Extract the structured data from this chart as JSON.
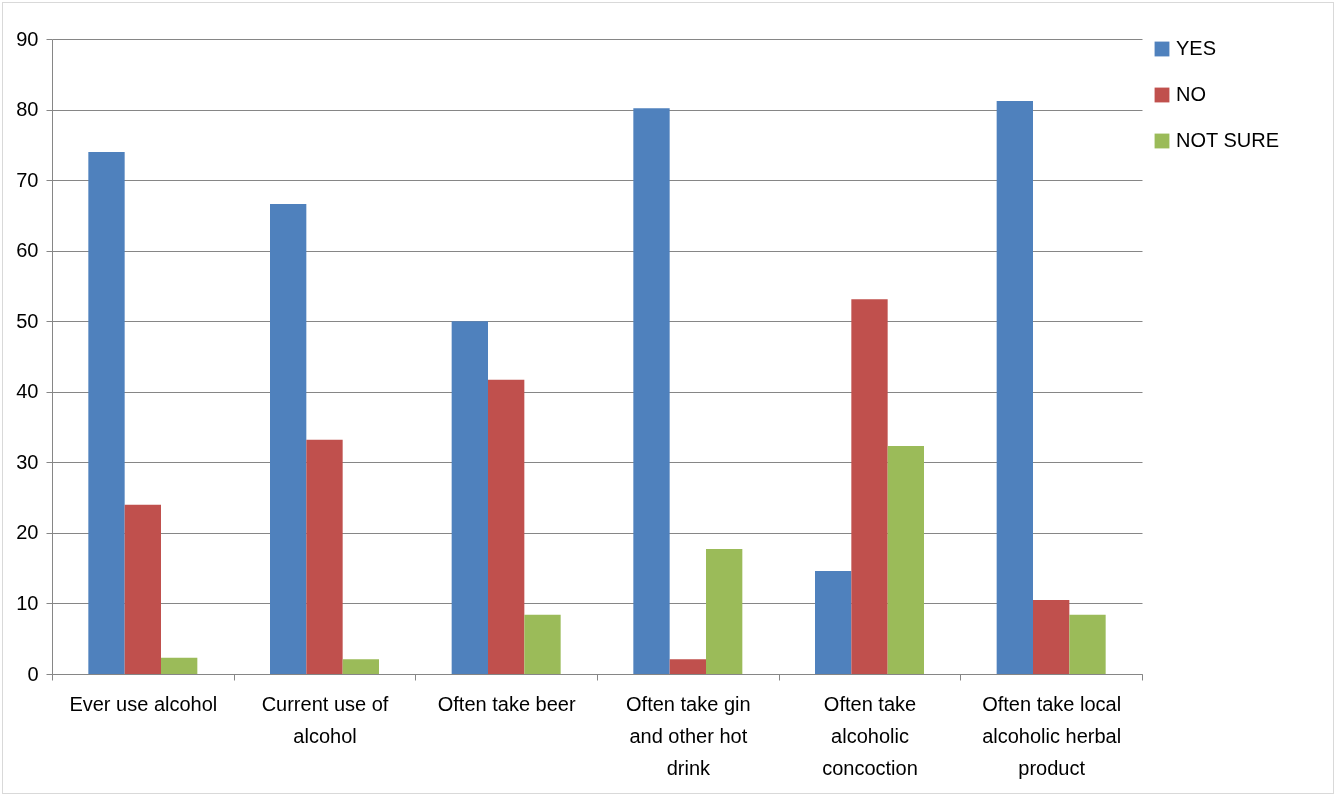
{
  "chart_data": {
    "type": "bar",
    "categories": [
      "Ever use alcohol",
      "Current use of alcohol",
      "Often take beer",
      "Often take gin and other hot drink",
      "Often take alcoholic concoction",
      "Often take local alcoholic herbal product"
    ],
    "series": [
      {
        "name": "YES",
        "color": "#4f81bd",
        "values": [
          74,
          66.6,
          50,
          80.2,
          14.6,
          81.2
        ]
      },
      {
        "name": "NO",
        "color": "#c0504d",
        "values": [
          24,
          33.2,
          41.7,
          2.1,
          53.1,
          10.5
        ]
      },
      {
        "name": "NOT SURE",
        "color": "#9bbb59",
        "values": [
          2.3,
          2.1,
          8.4,
          17.7,
          32.3,
          8.4
        ]
      }
    ],
    "ylim": [
      0,
      90
    ],
    "yticks": [
      0,
      10,
      20,
      30,
      40,
      50,
      60,
      70,
      80,
      90
    ],
    "grid": "y",
    "legend": "right"
  }
}
